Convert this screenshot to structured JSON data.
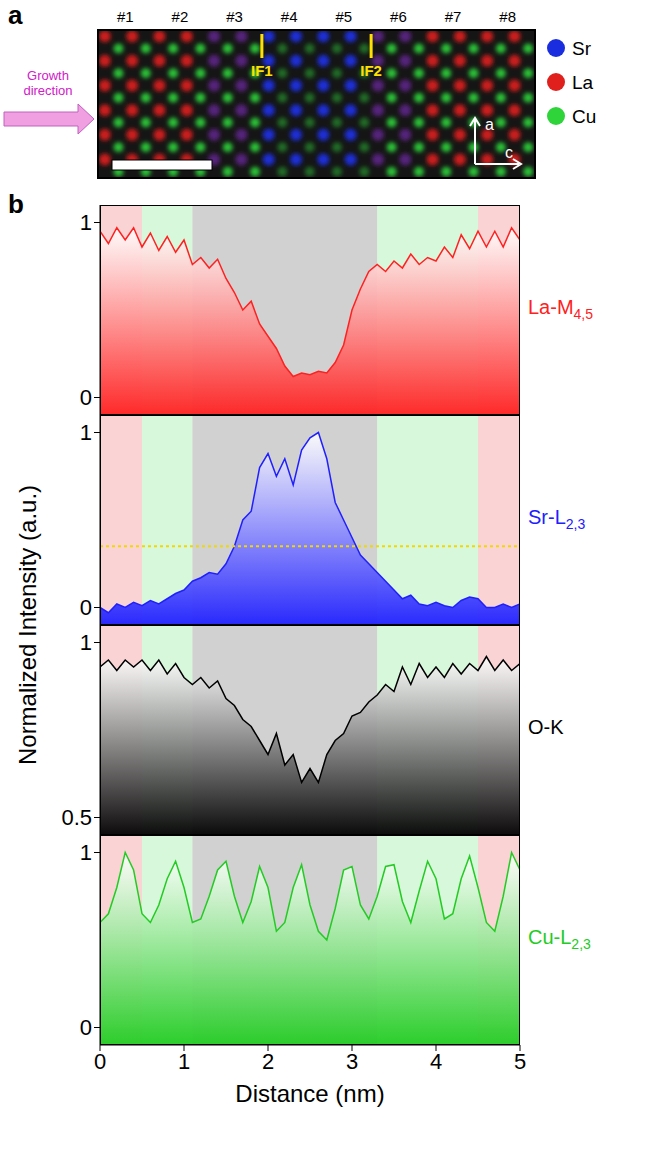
{
  "figure": {
    "panels": [
      "a",
      "b"
    ],
    "map": {
      "columns": [
        "#1",
        "#2",
        "#3",
        "#4",
        "#5",
        "#6",
        "#7",
        "#8"
      ],
      "interfaces": [
        {
          "label": "IF1",
          "after": "#3"
        },
        {
          "label": "IF2",
          "after": "#5"
        }
      ],
      "arrow_label": "Growth direction",
      "elements": [
        {
          "name": "Sr",
          "color": "#1a2ee0"
        },
        {
          "name": "La",
          "color": "#e0201c"
        },
        {
          "name": "Cu",
          "color": "#2ed43a"
        }
      ],
      "axes": [
        "a",
        "c"
      ]
    }
  },
  "chart_data": {
    "type": "line",
    "xlabel": "Distance (nm)",
    "ylabel": "Normalized Intensity (a.u.)",
    "xlim": [
      0,
      5
    ],
    "xticks": [
      0,
      1,
      2,
      3,
      4,
      5
    ],
    "x": [
      0,
      0.1,
      0.2,
      0.3,
      0.4,
      0.5,
      0.6,
      0.7,
      0.8,
      0.9,
      1.0,
      1.1,
      1.2,
      1.3,
      1.4,
      1.5,
      1.6,
      1.7,
      1.8,
      1.9,
      2.0,
      2.1,
      2.2,
      2.3,
      2.4,
      2.5,
      2.6,
      2.7,
      2.8,
      2.9,
      3.0,
      3.1,
      3.2,
      3.3,
      3.4,
      3.5,
      3.6,
      3.7,
      3.8,
      3.9,
      4.0,
      4.1,
      4.2,
      4.3,
      4.4,
      4.5,
      4.6,
      4.7,
      4.8,
      4.9,
      5.0
    ],
    "bands": [
      {
        "from": 0,
        "to": 0.5,
        "color": "#f4a0a0"
      },
      {
        "from": 0.5,
        "to": 1.1,
        "color": "#a8f0b0"
      },
      {
        "from": 1.1,
        "to": 3.3,
        "color": "#9a9a9a"
      },
      {
        "from": 3.3,
        "to": 4.5,
        "color": "#a8f0b0"
      },
      {
        "from": 4.5,
        "to": 5,
        "color": "#f4a0a0"
      }
    ],
    "series": [
      {
        "name": "La-M4,5",
        "color": "#ff2020",
        "ylim": [
          -0.1,
          1.1
        ],
        "yticks": [
          0,
          1
        ],
        "values": [
          0.95,
          0.88,
          0.97,
          0.9,
          0.97,
          0.86,
          0.94,
          0.84,
          0.92,
          0.83,
          0.9,
          0.76,
          0.8,
          0.74,
          0.79,
          0.68,
          0.6,
          0.5,
          0.55,
          0.42,
          0.35,
          0.28,
          0.18,
          0.12,
          0.14,
          0.13,
          0.15,
          0.14,
          0.2,
          0.3,
          0.5,
          0.62,
          0.72,
          0.76,
          0.72,
          0.78,
          0.74,
          0.82,
          0.76,
          0.8,
          0.78,
          0.86,
          0.8,
          0.93,
          0.85,
          0.95,
          0.86,
          0.95,
          0.86,
          0.97,
          0.9
        ]
      },
      {
        "name": "Sr-L2,3",
        "color": "#2020ff",
        "ylim": [
          -0.1,
          1.1
        ],
        "yticks": [
          0,
          1
        ],
        "hline": 0.35,
        "values": [
          0.0,
          -0.03,
          0.02,
          0.0,
          0.03,
          0.01,
          0.04,
          0.02,
          0.05,
          0.08,
          0.1,
          0.15,
          0.17,
          0.2,
          0.19,
          0.25,
          0.35,
          0.5,
          0.55,
          0.8,
          0.88,
          0.75,
          0.85,
          0.7,
          0.9,
          0.97,
          1.0,
          0.85,
          0.6,
          0.5,
          0.4,
          0.3,
          0.25,
          0.2,
          0.15,
          0.1,
          0.05,
          0.07,
          0.02,
          0.01,
          0.03,
          0.01,
          0.0,
          0.04,
          0.06,
          0.05,
          0.0,
          0.0,
          0.02,
          0.0,
          0.02
        ]
      },
      {
        "name": "O-K",
        "color": "#000000",
        "ylim": [
          0.45,
          1.05
        ],
        "yticks": [
          0.5,
          1
        ],
        "values": [
          0.93,
          0.95,
          0.92,
          0.95,
          0.93,
          0.95,
          0.92,
          0.95,
          0.91,
          0.94,
          0.9,
          0.88,
          0.9,
          0.87,
          0.89,
          0.84,
          0.82,
          0.78,
          0.76,
          0.72,
          0.68,
          0.74,
          0.65,
          0.68,
          0.6,
          0.64,
          0.6,
          0.68,
          0.72,
          0.74,
          0.79,
          0.8,
          0.83,
          0.85,
          0.88,
          0.86,
          0.93,
          0.88,
          0.94,
          0.9,
          0.93,
          0.9,
          0.94,
          0.91,
          0.94,
          0.92,
          0.96,
          0.92,
          0.95,
          0.92,
          0.94
        ]
      },
      {
        "name": "Cu-L2,3",
        "color": "#22cc22",
        "ylim": [
          -0.1,
          1.1
        ],
        "yticks": [
          0,
          1
        ],
        "values": [
          0.6,
          0.65,
          0.8,
          1.0,
          0.9,
          0.65,
          0.6,
          0.7,
          0.85,
          0.95,
          0.8,
          0.6,
          0.62,
          0.75,
          0.9,
          0.95,
          0.75,
          0.6,
          0.72,
          0.92,
          0.8,
          0.55,
          0.6,
          0.8,
          0.93,
          0.7,
          0.55,
          0.5,
          0.68,
          0.9,
          0.92,
          0.7,
          0.62,
          0.75,
          0.92,
          0.93,
          0.72,
          0.6,
          0.78,
          0.95,
          0.85,
          0.62,
          0.65,
          0.85,
          0.98,
          0.8,
          0.6,
          0.55,
          0.75,
          1.0,
          0.9
        ]
      }
    ]
  }
}
